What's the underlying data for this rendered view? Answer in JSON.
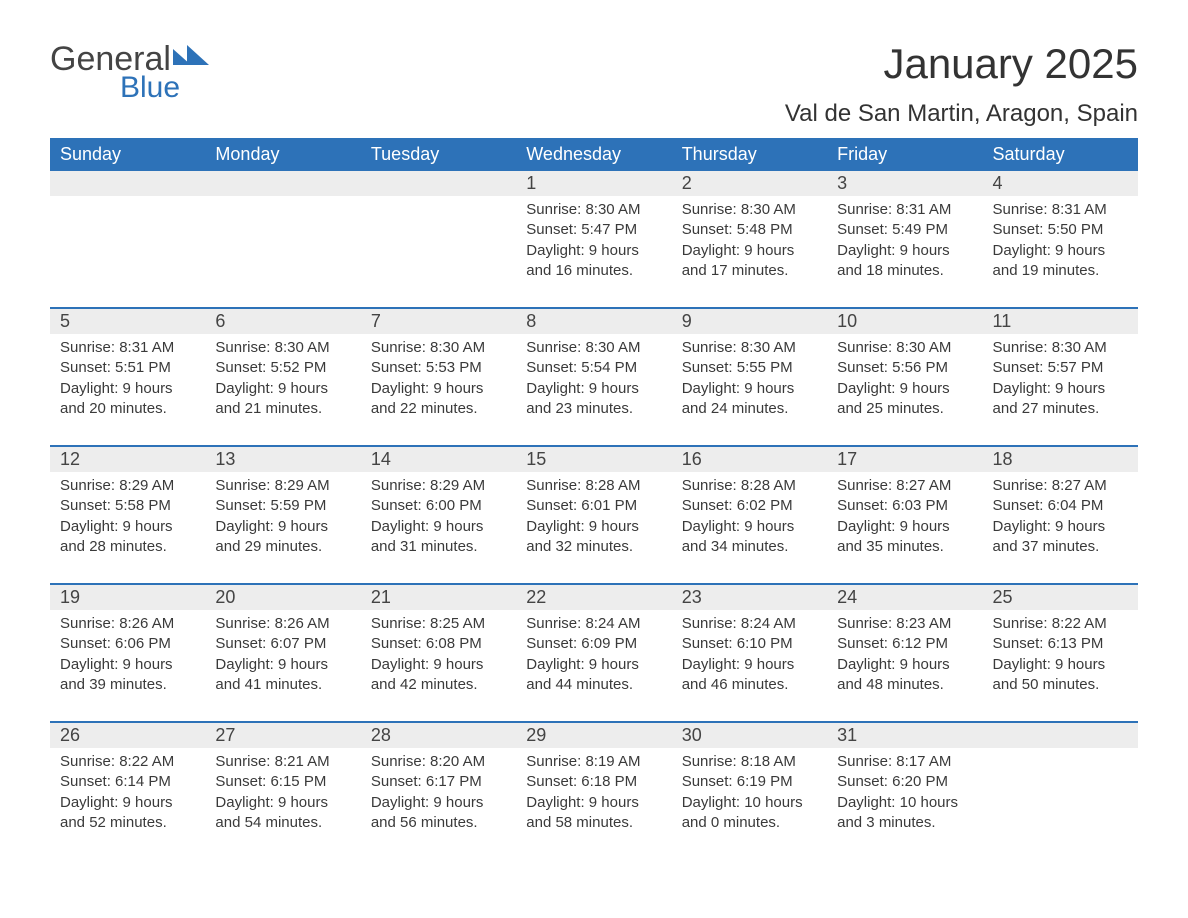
{
  "logo": {
    "general": "General",
    "blue": "Blue"
  },
  "title": "January 2025",
  "location": "Val de San Martin, Aragon, Spain",
  "colors": {
    "headerBg": "#2d72b8",
    "headerText": "#ffffff",
    "dayNumBg": "#ededed",
    "bodyText": "#3a3a3a",
    "pageBg": "#ffffff",
    "borderTop": "#2d72b8"
  },
  "fonts": {
    "title_size": 42,
    "location_size": 24,
    "dayhead_size": 18,
    "daynum_size": 18,
    "body_size": 15
  },
  "dayHeaders": [
    "Sunday",
    "Monday",
    "Tuesday",
    "Wednesday",
    "Thursday",
    "Friday",
    "Saturday"
  ],
  "weeks": [
    [
      null,
      null,
      null,
      {
        "n": "1",
        "sunrise": "8:30 AM",
        "sunset": "5:47 PM",
        "daylight": "9 hours and 16 minutes."
      },
      {
        "n": "2",
        "sunrise": "8:30 AM",
        "sunset": "5:48 PM",
        "daylight": "9 hours and 17 minutes."
      },
      {
        "n": "3",
        "sunrise": "8:31 AM",
        "sunset": "5:49 PM",
        "daylight": "9 hours and 18 minutes."
      },
      {
        "n": "4",
        "sunrise": "8:31 AM",
        "sunset": "5:50 PM",
        "daylight": "9 hours and 19 minutes."
      }
    ],
    [
      {
        "n": "5",
        "sunrise": "8:31 AM",
        "sunset": "5:51 PM",
        "daylight": "9 hours and 20 minutes."
      },
      {
        "n": "6",
        "sunrise": "8:30 AM",
        "sunset": "5:52 PM",
        "daylight": "9 hours and 21 minutes."
      },
      {
        "n": "7",
        "sunrise": "8:30 AM",
        "sunset": "5:53 PM",
        "daylight": "9 hours and 22 minutes."
      },
      {
        "n": "8",
        "sunrise": "8:30 AM",
        "sunset": "5:54 PM",
        "daylight": "9 hours and 23 minutes."
      },
      {
        "n": "9",
        "sunrise": "8:30 AM",
        "sunset": "5:55 PM",
        "daylight": "9 hours and 24 minutes."
      },
      {
        "n": "10",
        "sunrise": "8:30 AM",
        "sunset": "5:56 PM",
        "daylight": "9 hours and 25 minutes."
      },
      {
        "n": "11",
        "sunrise": "8:30 AM",
        "sunset": "5:57 PM",
        "daylight": "9 hours and 27 minutes."
      }
    ],
    [
      {
        "n": "12",
        "sunrise": "8:29 AM",
        "sunset": "5:58 PM",
        "daylight": "9 hours and 28 minutes."
      },
      {
        "n": "13",
        "sunrise": "8:29 AM",
        "sunset": "5:59 PM",
        "daylight": "9 hours and 29 minutes."
      },
      {
        "n": "14",
        "sunrise": "8:29 AM",
        "sunset": "6:00 PM",
        "daylight": "9 hours and 31 minutes."
      },
      {
        "n": "15",
        "sunrise": "8:28 AM",
        "sunset": "6:01 PM",
        "daylight": "9 hours and 32 minutes."
      },
      {
        "n": "16",
        "sunrise": "8:28 AM",
        "sunset": "6:02 PM",
        "daylight": "9 hours and 34 minutes."
      },
      {
        "n": "17",
        "sunrise": "8:27 AM",
        "sunset": "6:03 PM",
        "daylight": "9 hours and 35 minutes."
      },
      {
        "n": "18",
        "sunrise": "8:27 AM",
        "sunset": "6:04 PM",
        "daylight": "9 hours and 37 minutes."
      }
    ],
    [
      {
        "n": "19",
        "sunrise": "8:26 AM",
        "sunset": "6:06 PM",
        "daylight": "9 hours and 39 minutes."
      },
      {
        "n": "20",
        "sunrise": "8:26 AM",
        "sunset": "6:07 PM",
        "daylight": "9 hours and 41 minutes."
      },
      {
        "n": "21",
        "sunrise": "8:25 AM",
        "sunset": "6:08 PM",
        "daylight": "9 hours and 42 minutes."
      },
      {
        "n": "22",
        "sunrise": "8:24 AM",
        "sunset": "6:09 PM",
        "daylight": "9 hours and 44 minutes."
      },
      {
        "n": "23",
        "sunrise": "8:24 AM",
        "sunset": "6:10 PM",
        "daylight": "9 hours and 46 minutes."
      },
      {
        "n": "24",
        "sunrise": "8:23 AM",
        "sunset": "6:12 PM",
        "daylight": "9 hours and 48 minutes."
      },
      {
        "n": "25",
        "sunrise": "8:22 AM",
        "sunset": "6:13 PM",
        "daylight": "9 hours and 50 minutes."
      }
    ],
    [
      {
        "n": "26",
        "sunrise": "8:22 AM",
        "sunset": "6:14 PM",
        "daylight": "9 hours and 52 minutes."
      },
      {
        "n": "27",
        "sunrise": "8:21 AM",
        "sunset": "6:15 PM",
        "daylight": "9 hours and 54 minutes."
      },
      {
        "n": "28",
        "sunrise": "8:20 AM",
        "sunset": "6:17 PM",
        "daylight": "9 hours and 56 minutes."
      },
      {
        "n": "29",
        "sunrise": "8:19 AM",
        "sunset": "6:18 PM",
        "daylight": "9 hours and 58 minutes."
      },
      {
        "n": "30",
        "sunrise": "8:18 AM",
        "sunset": "6:19 PM",
        "daylight": "10 hours and 0 minutes."
      },
      {
        "n": "31",
        "sunrise": "8:17 AM",
        "sunset": "6:20 PM",
        "daylight": "10 hours and 3 minutes."
      },
      null
    ]
  ],
  "labels": {
    "sunrise": "Sunrise: ",
    "sunset": "Sunset: ",
    "daylight": "Daylight: "
  }
}
